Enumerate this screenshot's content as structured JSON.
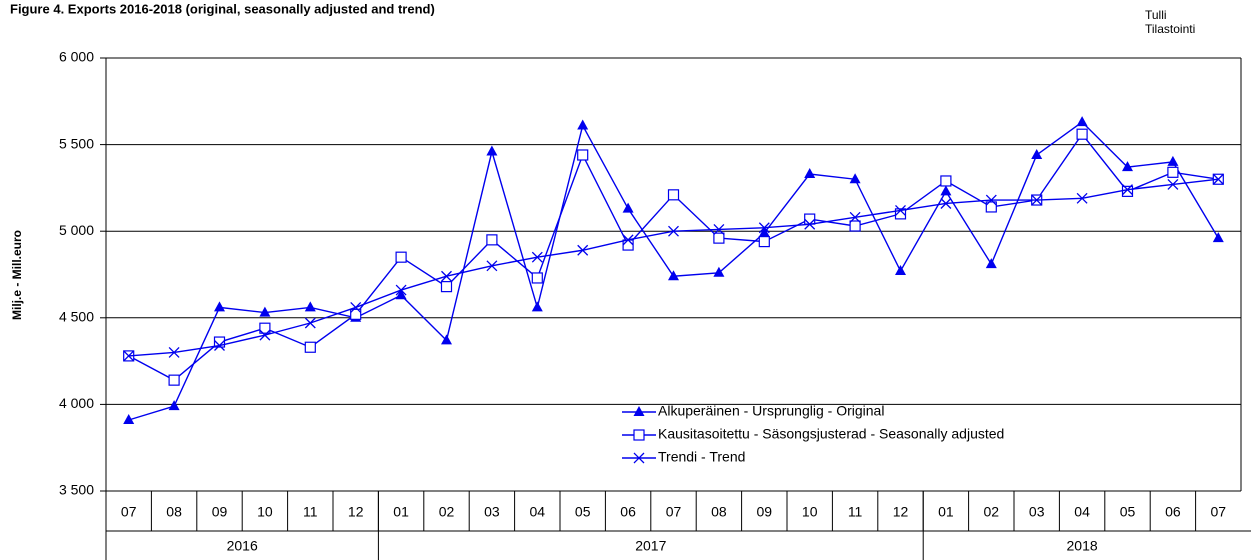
{
  "chart_data": {
    "type": "line",
    "title": "Figure  4. Exports 2016-2018 (original, seasonally adjusted and trend)",
    "source": [
      "Tulli",
      "Tilastointi"
    ],
    "ylabel": "Milj.e - Mill.euro",
    "categories": [
      "07",
      "08",
      "09",
      "10",
      "11",
      "12",
      "01",
      "02",
      "03",
      "04",
      "05",
      "06",
      "07",
      "08",
      "09",
      "10",
      "11",
      "12",
      "01",
      "02",
      "03",
      "04",
      "05",
      "06",
      "07"
    ],
    "years": [
      {
        "label": "2016",
        "span": 6
      },
      {
        "label": "2017",
        "span": 12
      },
      {
        "label": "2018",
        "span": 7
      }
    ],
    "ylim": [
      3500,
      6000
    ],
    "yticks": [
      {
        "value": 3500,
        "label": "3 500"
      },
      {
        "value": 4000,
        "label": "4 000"
      },
      {
        "value": 4500,
        "label": "4 500"
      },
      {
        "value": 5000,
        "label": "5 000"
      },
      {
        "value": 5500,
        "label": "5 500"
      },
      {
        "value": 6000,
        "label": "6 000"
      }
    ],
    "grid": true,
    "series": [
      {
        "name": "Alkuperäinen - Ursprunglig - Original",
        "color": "#0000ee",
        "marker": "triangle",
        "values": [
          3910,
          3990,
          4560,
          4530,
          4560,
          4500,
          4630,
          4370,
          5460,
          4560,
          5610,
          5130,
          4740,
          4760,
          4990,
          5330,
          5300,
          4770,
          5230,
          4810,
          5440,
          5630,
          5370,
          5400,
          4960
        ]
      },
      {
        "name": "Kausitasoitettu - Säsongsjusterad - Seasonally adjusted",
        "color": "#0000ee",
        "marker": "square",
        "values": [
          4280,
          4140,
          4360,
          4440,
          4330,
          4520,
          4850,
          4680,
          4950,
          4730,
          5440,
          4920,
          5210,
          4960,
          4940,
          5070,
          5030,
          5100,
          5290,
          5140,
          5180,
          5560,
          5230,
          5340,
          5300
        ]
      },
      {
        "name": "Trendi - Trend",
        "color": "#0000ee",
        "marker": "x",
        "values": [
          4280,
          4300,
          4340,
          4400,
          4470,
          4560,
          4660,
          4740,
          4800,
          4850,
          4890,
          4950,
          5000,
          5010,
          5020,
          5040,
          5080,
          5120,
          5160,
          5180,
          5180,
          5190,
          5240,
          5270,
          5300
        ]
      }
    ]
  }
}
